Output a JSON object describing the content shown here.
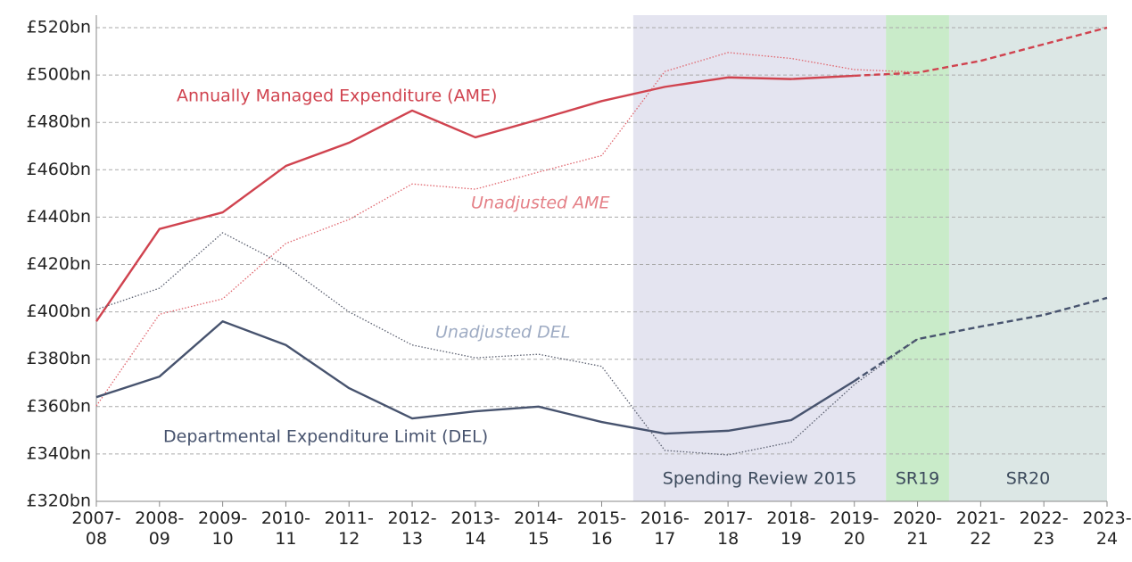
{
  "chart_data": {
    "type": "line",
    "categories": [
      "2007-08",
      "2008-09",
      "2009-10",
      "2010-11",
      "2011-12",
      "2012-13",
      "2013-14",
      "2014-15",
      "2015-16",
      "2016-17",
      "2017-18",
      "2018-19",
      "2019-20",
      "2020-21",
      "2021-22",
      "2022-23",
      "2023-24"
    ],
    "series": [
      {
        "name": "Annually Managed Expenditure (AME)",
        "color": "#d0434f",
        "style": "solid",
        "dashed_from": "2019-20",
        "values": [
          396,
          435,
          442,
          461.6,
          471.4,
          485,
          473.7,
          481.2,
          489,
          495,
          499,
          498.3,
          499.7,
          501,
          506,
          513,
          520
        ]
      },
      {
        "name": "Unadjusted AME",
        "color": "#e0656d",
        "style": "dotted",
        "values": [
          360.3,
          399,
          405.5,
          428.9,
          439,
          454,
          451.8,
          459,
          466,
          501.5,
          509.5,
          507,
          502.3,
          501.2,
          null,
          null,
          null
        ]
      },
      {
        "name": "Departmental Expenditure Limit (DEL)",
        "color": "#47536e",
        "style": "solid",
        "dashed_from": "2019-20",
        "values": [
          364,
          372.7,
          396,
          386,
          367.8,
          355,
          358,
          360,
          353.5,
          348.6,
          349.8,
          354.3,
          370.8,
          388.5,
          393.8,
          398.7,
          405.9
        ]
      },
      {
        "name": "Unadjusted DEL",
        "color": "#5b6070",
        "style": "dotted",
        "values": [
          401,
          410,
          433.4,
          419.5,
          400,
          386,
          380.6,
          382.1,
          377,
          341.5,
          339.6,
          345,
          369.3,
          388.5,
          null,
          null,
          null
        ]
      }
    ],
    "regions": [
      {
        "label": "Spending Review 2015",
        "from": "2016-17",
        "to": "2019-20",
        "color": "#e4e4f0"
      },
      {
        "label": "SR19",
        "from": "2020-21",
        "to": "2020-21",
        "color": "#c9ebc9"
      },
      {
        "label": "SR20",
        "from": "2021-22",
        "to": "2023-24",
        "color": "#dce7e5"
      }
    ],
    "ylim": [
      320,
      520
    ],
    "yticks": [
      {
        "value": 320,
        "label": "£320bn"
      },
      {
        "value": 340,
        "label": "£340bn"
      },
      {
        "value": 360,
        "label": "£360bn"
      },
      {
        "value": 380,
        "label": "£380bn"
      },
      {
        "value": 400,
        "label": "£400bn"
      },
      {
        "value": 420,
        "label": "£420bn"
      },
      {
        "value": 440,
        "label": "£440bn"
      },
      {
        "value": 460,
        "label": "£460bn"
      },
      {
        "value": 480,
        "label": "£480bn"
      },
      {
        "value": 500,
        "label": "£500bn"
      },
      {
        "value": 520,
        "label": "£520bn"
      }
    ],
    "grid": true
  }
}
